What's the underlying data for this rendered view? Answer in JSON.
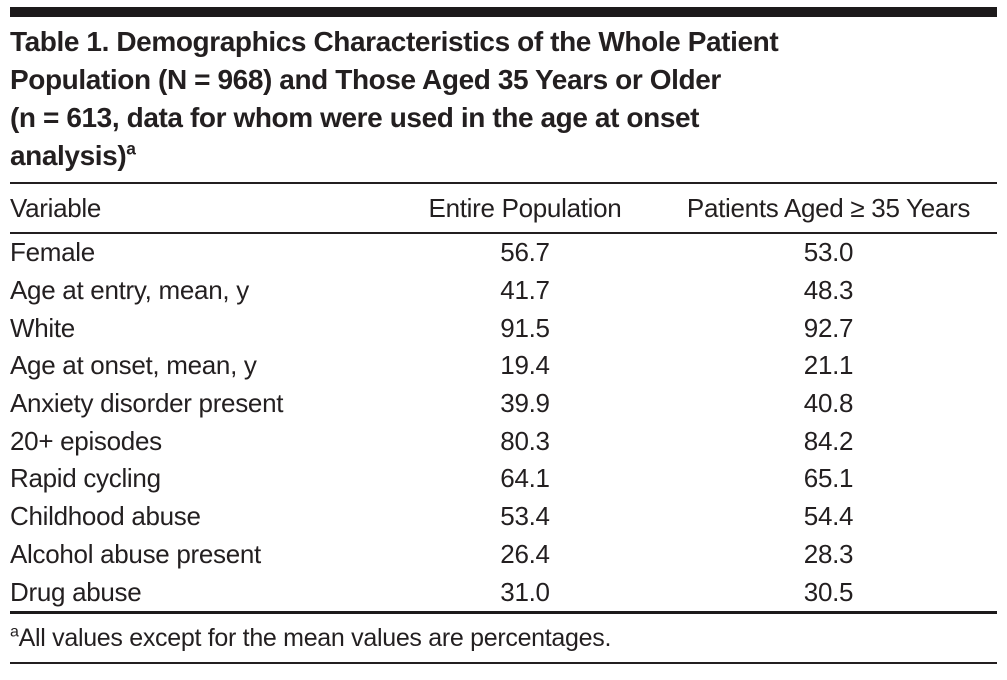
{
  "figure": {
    "title_lines": "Table 1. Demographics Characteristics of the Whole Patient\nPopulation (N = 968) and Those Aged 35 Years or Older\n(n = 613, data for whom were used in the age at onset\nanalysis)",
    "title_footnote_marker": "a",
    "columns": [
      "Variable",
      "Entire Population",
      "Patients Aged ≥ 35 Years"
    ],
    "rows": [
      {
        "variable": "Female",
        "entire": "56.7",
        "aged35": "53.0"
      },
      {
        "variable": "Age at entry, mean, y",
        "entire": "41.7",
        "aged35": "48.3"
      },
      {
        "variable": "White",
        "entire": "91.5",
        "aged35": "92.7"
      },
      {
        "variable": "Age at onset, mean, y",
        "entire": "19.4",
        "aged35": "21.1"
      },
      {
        "variable": "Anxiety disorder present",
        "entire": "39.9",
        "aged35": "40.8"
      },
      {
        "variable": "20+ episodes",
        "entire": "80.3",
        "aged35": "84.2"
      },
      {
        "variable": "Rapid cycling",
        "entire": "64.1",
        "aged35": "65.1"
      },
      {
        "variable": "Childhood abuse",
        "entire": "53.4",
        "aged35": "54.4"
      },
      {
        "variable": "Alcohol abuse present",
        "entire": "26.4",
        "aged35": "28.3"
      },
      {
        "variable": "Drug abuse",
        "entire": "31.0",
        "aged35": "30.5"
      }
    ],
    "footnote_marker": "a",
    "footnote_text": "All values except for the mean values are percentages.",
    "colors": {
      "text": "#231f20",
      "rule": "#1d1a1b",
      "background": "#ffffff"
    }
  }
}
